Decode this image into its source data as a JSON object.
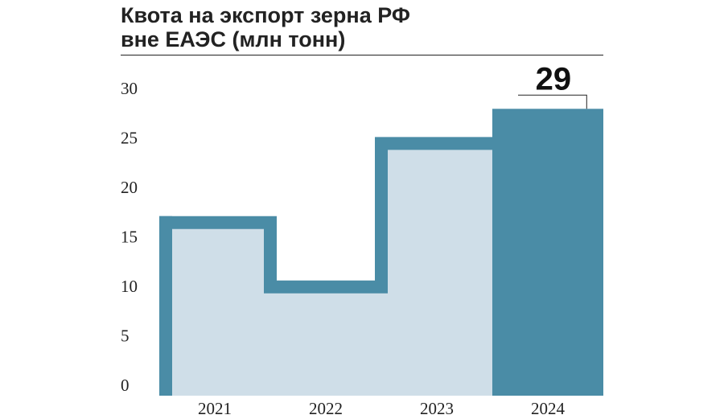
{
  "chart_data": {
    "type": "step_bar",
    "title": [
      "Квота на экспорт зерна РФ",
      "вне ЕАЭС (млн тонн)"
    ],
    "categories": [
      "2021",
      "2022",
      "2023",
      "2024"
    ],
    "values": [
      17.5,
      11,
      25.5,
      29
    ],
    "color": "#4a8ca6",
    "fill_color": "#cfdee8",
    "ylim": [
      0,
      30
    ],
    "yticks": [
      0,
      5,
      10,
      15,
      20,
      25,
      30
    ]
  }
}
